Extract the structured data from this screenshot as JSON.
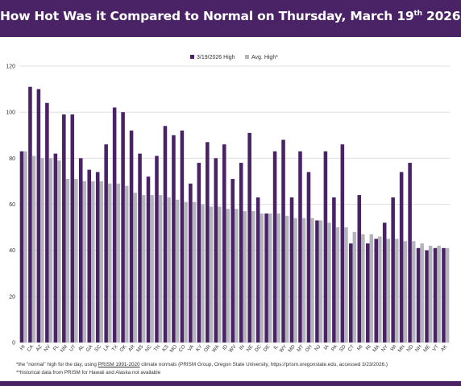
{
  "title": {
    "main": "How Hot Was it Compared to Normal on Thursday, March 19",
    "sup": "th",
    "year": " 2026?"
  },
  "footnotes": {
    "line1_pre": "*the \"normal\" high for the day, using ",
    "line1_link": "PRISM 1991-2020",
    "line1_post": " climate normals (PRISM Group, Oregon State University, https://prism.oregonstate.edu, accessed 3/23/2026.)",
    "line2": "**historical data from PRISM for Hawaii and Alaska not available"
  },
  "colors": {
    "header": "#4a2366",
    "series_high": "#4a2366",
    "series_avg": "#b4b4bc",
    "grid": "#d9d9d9",
    "text": "#333333"
  },
  "chart_data": {
    "type": "bar",
    "legend_position": "top-center",
    "grid": true,
    "ylim": [
      0,
      120
    ],
    "yticks": [
      0,
      20,
      40,
      60,
      80,
      100,
      120
    ],
    "categories": [
      "HI",
      "CA",
      "AZ",
      "NV",
      "FL",
      "NM",
      "UT",
      "AL",
      "GA",
      "SC",
      "LA",
      "TX",
      "OK",
      "AR",
      "MS",
      "NC",
      "TN",
      "KS",
      "MO",
      "CO",
      "VA",
      "KY",
      "OR",
      "WA",
      "ID",
      "WV",
      "IN",
      "NE",
      "DC",
      "DE",
      "IL",
      "WY",
      "MD",
      "MT",
      "OH",
      "NJ",
      "IA",
      "PA",
      "SD",
      "CT",
      "MI",
      "RI",
      "MA",
      "NY",
      "WI",
      "MN",
      "ND",
      "NH",
      "ME",
      "VT",
      "AK"
    ],
    "series": [
      {
        "name": "3/19/2026 High",
        "values": [
          83,
          111,
          110,
          104,
          82,
          99,
          99,
          80,
          75,
          74,
          86,
          102,
          100,
          92,
          82,
          72,
          81,
          94,
          90,
          92,
          69,
          78,
          87,
          80,
          86,
          71,
          78,
          91,
          63,
          56,
          83,
          88,
          63,
          83,
          74,
          53,
          83,
          63,
          86,
          43,
          64,
          43,
          45,
          52,
          63,
          74,
          78,
          41,
          40,
          41,
          41
        ]
      },
      {
        "name": "Avg. High*",
        "values": [
          83,
          81,
          80,
          80,
          79,
          71,
          71,
          70,
          70,
          70,
          69,
          69,
          68,
          65,
          64,
          64,
          64,
          63,
          62,
          61,
          61,
          60,
          59,
          59,
          58,
          58,
          57,
          57,
          56,
          56,
          56,
          55,
          54,
          54,
          54,
          53,
          52,
          50,
          50,
          48,
          47,
          47,
          46,
          45,
          45,
          44,
          44,
          43,
          42,
          42,
          41
        ]
      }
    ]
  }
}
